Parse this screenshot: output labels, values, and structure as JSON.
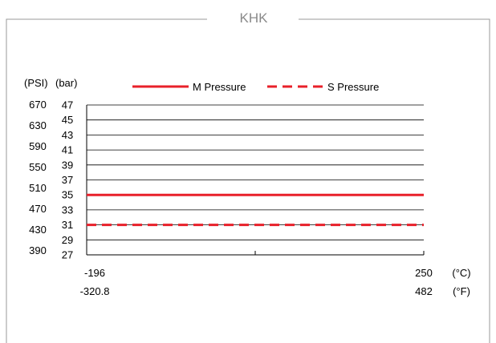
{
  "title": "KHK",
  "colors": {
    "frame": "#9a9a9a",
    "series": "#e8202a",
    "grid": "#000000",
    "title": "#8a8a8a"
  },
  "chart_data": {
    "type": "line",
    "title": "KHK",
    "y_unit_left": "(PSI)",
    "y_unit_right": "(bar)",
    "x_unit_top": "(°C)",
    "x_unit_bottom": "(°F)",
    "x_ticks_c": [
      "-196",
      "250"
    ],
    "x_ticks_f": [
      "-320.8",
      "482"
    ],
    "xlim_c": [
      -196,
      250
    ],
    "ylim_bar": [
      27,
      47
    ],
    "y_ticks_bar": [
      "47",
      "45",
      "43",
      "41",
      "39",
      "37",
      "35",
      "33",
      "31",
      "29",
      "27"
    ],
    "y_ticks_psi": [
      "670",
      "630",
      "590",
      "550",
      "510",
      "470",
      "430",
      "390"
    ],
    "grid": true,
    "legend_position": "top",
    "series": [
      {
        "name": "M Pressure",
        "style": "solid",
        "x_c": [
          -196,
          250
        ],
        "values_bar": [
          35,
          35
        ]
      },
      {
        "name": "S Pressure",
        "style": "dashed",
        "x_c": [
          -196,
          250
        ],
        "values_bar": [
          31,
          31
        ]
      }
    ]
  }
}
